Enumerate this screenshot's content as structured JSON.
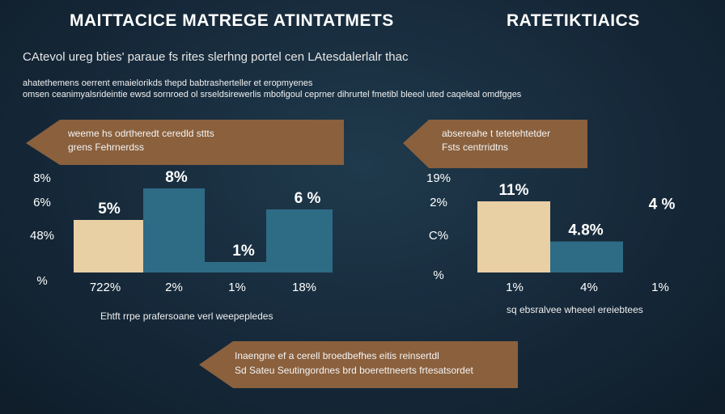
{
  "header": {
    "title_left": "MAITTACICE MATREGE ATINTATMETS",
    "title_right": "RATETIKTIAICS",
    "subtitle": "CAtevol ureg bties' paraue fs rites slerhng portel cen LAtesdalerlalr thac",
    "para_line1": "ahatethemens oerrent emaielorikds thepd babtrasherteller et eropmyenes",
    "para_line2": "omsen ceanimyalsrideintie ewsd sornroed ol srseldsirewerlis mbofigoul ceprner dihrurtel fmetibl bleeol uted caqeleal omdfgges"
  },
  "banners": {
    "left_line1": "weeme hs odrtheredt ceredld sttts",
    "left_line2": "grens Fehrnerdss",
    "right_line1": "absereahe t tetetehtetder",
    "right_line2": "Fsts centrridtns",
    "bottom_line1": "Inaengne ef a cerell broedbefhes eitis reinsertdl",
    "bottom_line2": "Sd Sateu Seutingordnes brd boerettneerts frtesatsordet"
  },
  "captions": {
    "left": "Ehtft rrpe prafersoane verl weepepledes",
    "right": "sq ebsralvee wheeel ereiebtees"
  },
  "colors": {
    "tan": "#e8cfa4",
    "teal": "#2e6b85",
    "banner": "#8a603d",
    "background": "#16293a"
  },
  "chart_data": [
    {
      "type": "bar",
      "categories": [
        "722%",
        "2%",
        "1%",
        "18%"
      ],
      "values": [
        5,
        8,
        1,
        6
      ],
      "data_labels": [
        "5%",
        "8%",
        "1%",
        "6 %"
      ],
      "yticks": [
        "8%",
        "6%",
        "48%",
        "%"
      ],
      "colors": [
        "#e8cfa4",
        "#2e6b85",
        "#2e6b85",
        "#2e6b85"
      ]
    },
    {
      "type": "bar",
      "categories": [
        "1%",
        "4%",
        "1%"
      ],
      "values": [
        11,
        4.8,
        4
      ],
      "data_labels": [
        "11%",
        "4.8%",
        "4 %"
      ],
      "yticks": [
        "19%",
        "2%",
        "C%",
        "%"
      ],
      "colors": [
        "#e8cfa4",
        "#2e6b85",
        "#2e6b85"
      ]
    }
  ]
}
